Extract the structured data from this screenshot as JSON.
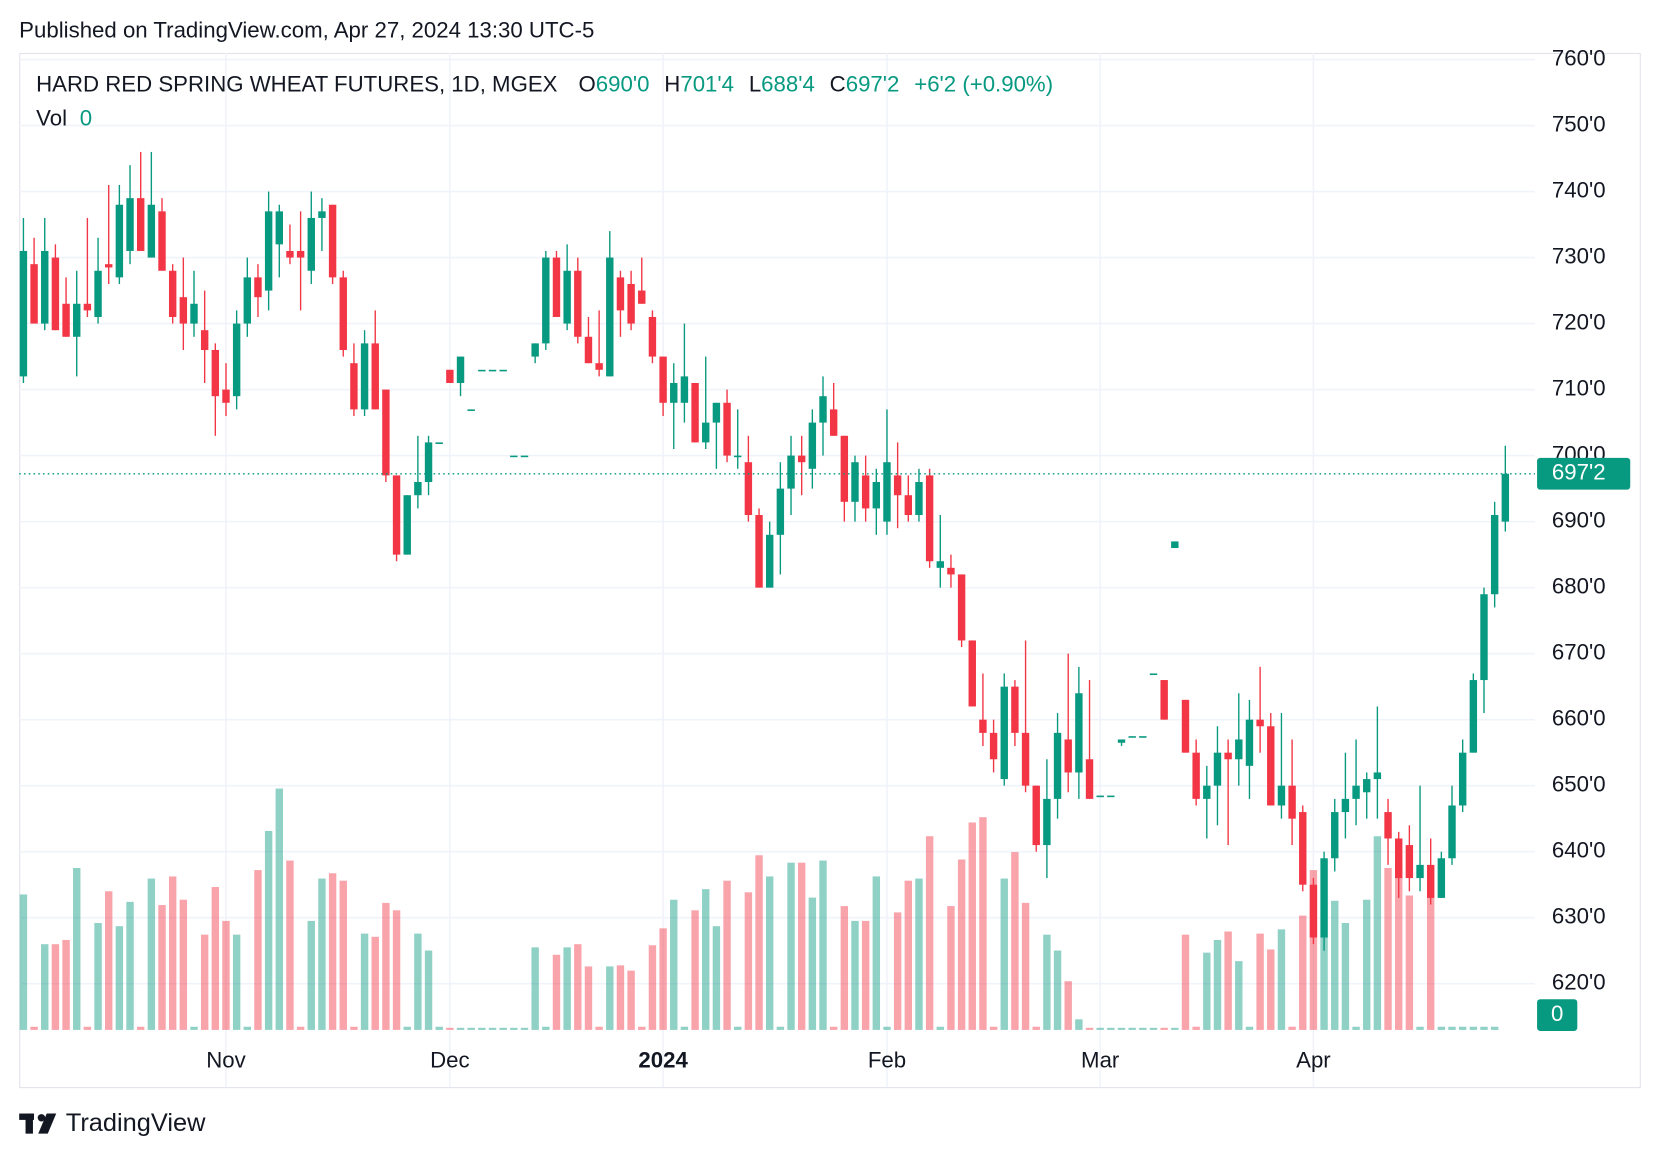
{
  "published": "Published on TradingView.com, Apr 27, 2024 13:30 UTC-5",
  "chart_data": {
    "type": "candlestick",
    "title": "HARD RED SPRING WHEAT FUTURES, 1D, MGEX",
    "ohlc_legend": [
      {
        "key": "O",
        "value": "690'0"
      },
      {
        "key": "H",
        "value": "701'4"
      },
      {
        "key": "L",
        "value": "688'4"
      },
      {
        "key": "C",
        "value": "697'2"
      }
    ],
    "change": "+6'2 (+0.90%)",
    "volume_label": "Vol",
    "categories": [
      null,
      null,
      null,
      null,
      null,
      null,
      null,
      null,
      null,
      null,
      null,
      null,
      null,
      null,
      null,
      null,
      null,
      null,
      null,
      "Nov",
      null,
      null,
      null,
      null,
      null,
      null,
      null,
      null,
      null,
      null,
      null,
      null,
      null,
      null,
      null,
      null,
      null,
      null,
      null,
      null,
      "Dec",
      null,
      null,
      null,
      null,
      null,
      null,
      null,
      null,
      null,
      null,
      null,
      null,
      null,
      null,
      null,
      null,
      null,
      null,
      null,
      "2024",
      null,
      null,
      null,
      null,
      null,
      null,
      null,
      null,
      null,
      null,
      null,
      null,
      null,
      null,
      null,
      null,
      null,
      null,
      null,
      null,
      "Feb",
      null,
      null,
      null,
      null,
      null,
      null,
      null,
      null,
      null,
      null,
      null,
      null,
      null,
      null,
      null,
      null,
      null,
      null,
      null,
      "Mar",
      null,
      null,
      null,
      null,
      null,
      null,
      null,
      null,
      null,
      null,
      null,
      null,
      null,
      null,
      null,
      null,
      null,
      null,
      null,
      "Apr",
      null,
      null,
      null,
      null,
      null,
      null,
      null,
      null,
      null,
      null,
      null,
      null,
      null,
      null,
      null,
      null,
      null,
      null
    ],
    "open": [
      712,
      729,
      720,
      730,
      723,
      718,
      723,
      721,
      729,
      727,
      731,
      739,
      730,
      737,
      728,
      724,
      720,
      719,
      716,
      710,
      709,
      720,
      727,
      725,
      732,
      731,
      731,
      728,
      736,
      738,
      727,
      714,
      707,
      717,
      710,
      697,
      685,
      694,
      696,
      702,
      713,
      711,
      707,
      713,
      713,
      713,
      700,
      700,
      715,
      717,
      730,
      720,
      728,
      718,
      714,
      712,
      727,
      726,
      725,
      721,
      715,
      708,
      708,
      711,
      702,
      705,
      708,
      700,
      699,
      691,
      680,
      688,
      695,
      700,
      698,
      705,
      707,
      703,
      693,
      697,
      692,
      690,
      697,
      694,
      691,
      697,
      683,
      683,
      682,
      672,
      660,
      658,
      651,
      665,
      658,
      650,
      641,
      648,
      657,
      652,
      654,
      648.5,
      648.5,
      656.5,
      657.5,
      657.5,
      667,
      666,
      686,
      663,
      655,
      648,
      650,
      655,
      654,
      653,
      660,
      659,
      647,
      650,
      646,
      635,
      627,
      639,
      646,
      648,
      649,
      651,
      646,
      642,
      641,
      636,
      638,
      633,
      639,
      647,
      655,
      666,
      679,
      690
    ],
    "high": [
      736,
      733,
      736,
      732,
      727,
      728,
      736,
      733,
      741,
      741,
      744,
      746,
      746,
      739,
      729,
      730,
      728,
      725,
      717,
      714,
      722,
      730,
      729,
      740,
      738,
      735,
      737,
      740,
      739,
      738,
      728,
      717,
      719,
      722,
      710,
      697,
      694,
      703,
      703,
      702,
      713,
      715,
      707,
      713,
      713,
      713,
      700,
      700,
      717,
      731,
      731,
      732,
      730,
      721,
      722,
      734,
      728,
      728,
      730,
      722,
      715,
      714,
      720,
      711,
      715,
      708,
      710,
      707,
      703,
      692,
      690,
      699,
      703,
      703,
      707,
      712,
      711,
      703,
      700,
      700,
      698,
      707,
      702,
      697,
      698,
      698,
      691,
      685,
      682,
      672,
      667,
      660,
      667,
      666,
      672,
      650,
      654,
      661,
      670,
      668,
      666,
      648.5,
      648.5,
      657,
      657.5,
      657.5,
      667,
      666,
      687,
      663,
      657,
      653,
      659,
      657,
      664,
      663,
      668,
      661,
      661,
      657,
      647,
      636,
      640,
      648,
      655,
      657,
      652,
      662,
      648,
      643,
      644,
      650,
      642,
      640,
      650,
      657,
      667,
      680,
      693,
      701.5
    ],
    "low": [
      711,
      721,
      719,
      719,
      718,
      712,
      721,
      720,
      726,
      726,
      729,
      731,
      730,
      729,
      720,
      716,
      718,
      711,
      703,
      706,
      707,
      718,
      721,
      722,
      727,
      729,
      722,
      726,
      731,
      726,
      715,
      706,
      706,
      707,
      696,
      684,
      685,
      692,
      694,
      702,
      711,
      709,
      707,
      713,
      713,
      713,
      700,
      700,
      714,
      716,
      721,
      719,
      717,
      714,
      712,
      712,
      718,
      719,
      723,
      714,
      706,
      701,
      705,
      702,
      701,
      698,
      699,
      698,
      690,
      680,
      680,
      682,
      691,
      694,
      695,
      700,
      703,
      690,
      690,
      690,
      688,
      688,
      689,
      690,
      690,
      683,
      680,
      680,
      671,
      662,
      656,
      652,
      650,
      656,
      649,
      640,
      636,
      645,
      649,
      648,
      648,
      648.5,
      648.5,
      656,
      657.5,
      657.5,
      667,
      660,
      686,
      655,
      647,
      642,
      644,
      641,
      650,
      648,
      655,
      647,
      645,
      641,
      634,
      626,
      625,
      637,
      642,
      644,
      645,
      645,
      638,
      633,
      634,
      634,
      632,
      633,
      638,
      646,
      655,
      661,
      677,
      688.5
    ],
    "close": [
      731,
      720,
      731,
      719,
      718,
      723,
      722,
      728,
      728.5,
      738,
      739,
      731,
      738,
      728,
      721,
      720,
      723,
      716,
      709,
      708,
      720,
      727,
      724,
      737,
      737,
      730,
      730,
      736,
      737,
      727,
      716,
      707,
      717,
      707,
      697,
      685,
      694,
      696,
      702,
      702,
      711,
      715,
      707,
      713,
      713,
      713,
      700,
      700,
      717,
      730,
      721,
      728,
      718,
      714,
      713,
      730,
      722,
      720,
      723,
      715,
      708,
      711,
      712,
      702,
      705,
      708,
      700,
      700,
      691,
      680,
      688,
      695,
      700,
      699,
      705,
      709,
      703,
      693,
      699,
      692,
      696,
      699,
      694,
      691,
      696,
      684,
      684,
      682,
      672,
      662,
      658,
      654,
      665,
      658,
      650,
      641,
      648,
      658,
      652,
      664,
      648,
      648.5,
      648.5,
      657,
      657.5,
      657.5,
      667,
      660,
      687,
      655,
      648,
      650,
      655,
      654,
      657,
      660,
      659,
      647,
      650,
      645,
      635,
      627,
      639,
      646,
      648,
      650,
      651,
      652,
      642,
      636,
      636,
      638,
      633,
      639,
      647,
      655,
      666,
      679,
      691,
      697.25
    ],
    "volume": [
      128,
      3,
      81,
      81,
      85,
      153,
      3,
      101,
      131,
      98,
      121,
      3,
      143,
      118,
      145,
      123,
      3,
      90,
      135,
      103,
      90,
      3,
      151,
      188,
      228,
      160,
      3,
      103,
      143,
      148,
      141,
      3,
      91,
      88,
      120,
      113,
      3,
      91,
      75,
      3,
      2,
      2,
      2,
      2,
      2,
      2,
      2,
      2,
      78,
      3,
      71,
      78,
      81,
      60,
      3,
      60,
      61,
      56,
      3,
      80,
      96,
      123,
      3,
      113,
      133,
      98,
      141,
      3,
      130,
      165,
      145,
      3,
      158,
      158,
      125,
      160,
      3,
      117,
      103,
      103,
      145,
      3,
      111,
      141,
      143,
      183,
      3,
      117,
      161,
      196,
      201,
      3,
      143,
      168,
      120,
      3,
      90,
      75,
      46,
      10,
      2,
      2,
      2,
      2,
      2,
      2,
      2,
      2,
      2,
      90,
      3,
      73,
      85,
      93,
      65,
      3,
      91,
      76,
      95,
      3,
      108,
      151,
      88,
      122,
      101,
      3,
      123,
      183,
      153,
      158,
      127,
      3,
      125,
      3,
      3,
      3,
      3,
      3,
      3,
      0
    ],
    "up_color": "#089981",
    "down_color": "#f23645",
    "ylim": [
      613,
      761
    ],
    "yticks": [
      {
        "value": 620,
        "label": "620'0"
      },
      {
        "value": 630,
        "label": "630'0"
      },
      {
        "value": 640,
        "label": "640'0"
      },
      {
        "value": 650,
        "label": "650'0"
      },
      {
        "value": 660,
        "label": "660'0"
      },
      {
        "value": 670,
        "label": "670'0"
      },
      {
        "value": 680,
        "label": "680'0"
      },
      {
        "value": 690,
        "label": "690'0"
      },
      {
        "value": 700,
        "label": "700'0"
      },
      {
        "value": 710,
        "label": "710'0"
      },
      {
        "value": 720,
        "label": "720'0"
      },
      {
        "value": 730,
        "label": "730'0"
      },
      {
        "value": 740,
        "label": "740'0"
      },
      {
        "value": 750,
        "label": "750'0"
      },
      {
        "value": 760,
        "label": "760'0"
      }
    ],
    "last_price": {
      "value": 697.25,
      "label": "697'2"
    },
    "grid": true
  },
  "footer": {
    "brand": "TradingView"
  }
}
